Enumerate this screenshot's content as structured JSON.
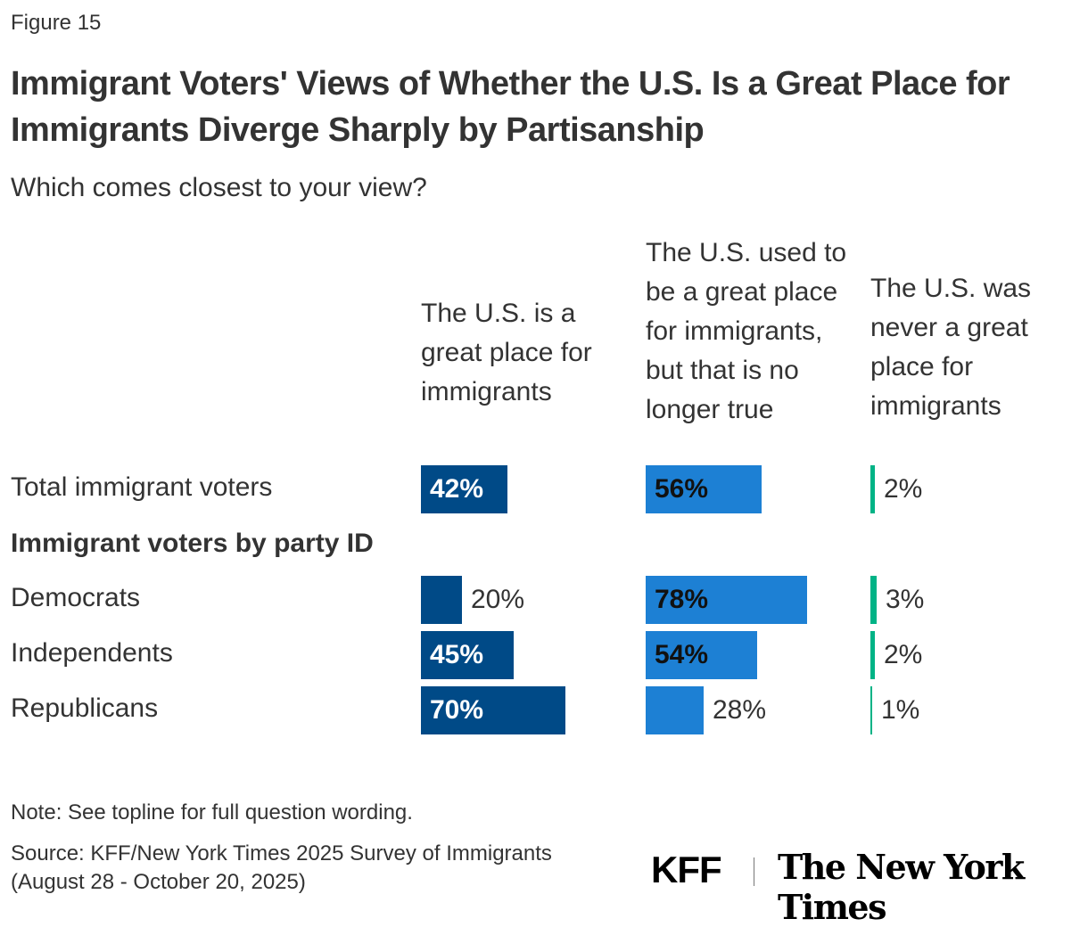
{
  "figure_label": "Figure 15",
  "footer": {
    "note": "Note: See topline for full question wording.",
    "source_line1": "Source: KFF/New York Times 2025 Survey of Immigrants",
    "source_line2": "(August 28 - October 20, 2025)",
    "logo_kff": "KFF",
    "logo_nyt": "The New York Times"
  },
  "chart_data": {
    "type": "bar",
    "orientation": "horizontal",
    "title": "Immigrant Voters' Views of Whether the U.S. Is a Great Place for Immigrants Diverge Sharply by Partisanship",
    "subtitle": "Which comes closest to your view?",
    "group_label": "Immigrant voters by party ID",
    "categories": [
      "Total immigrant voters",
      "Democrats",
      "Independents",
      "Republicans"
    ],
    "series": [
      {
        "name": "The U.S. is a great place for immigrants",
        "color": "#004a87",
        "values": [
          42,
          20,
          45,
          70
        ]
      },
      {
        "name": "The U.S. used to be a great place for immigrants, but that is no longer true",
        "color": "#1d80d4",
        "values": [
          56,
          78,
          54,
          28
        ]
      },
      {
        "name": "The U.S. was never a great place for immigrants",
        "color": "#00b386",
        "values": [
          2,
          3,
          2,
          1
        ]
      }
    ],
    "value_suffix": "%",
    "xlim": [
      0,
      100
    ],
    "grid": false,
    "legend": "column headers"
  }
}
